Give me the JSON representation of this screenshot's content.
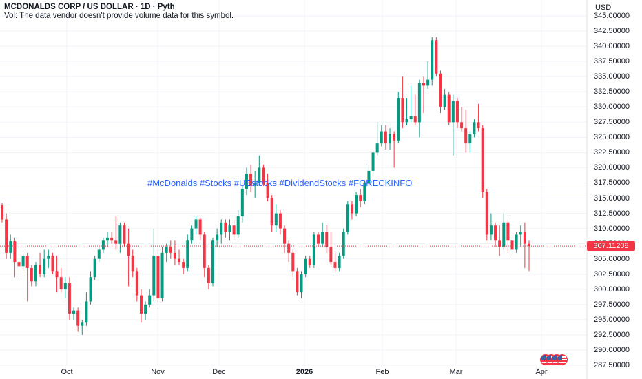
{
  "header": {
    "title": "MCDONALDS CORP / US DOLLAR · 1D · Pyth",
    "volume_note": "Vol: The data vendor doesn't provide volume data for this symbol."
  },
  "axis": {
    "currency": "USD",
    "y_ticks": [
      "345.00000",
      "342.50000",
      "340.00000",
      "337.50000",
      "335.00000",
      "332.50000",
      "330.00000",
      "327.50000",
      "325.00000",
      "322.50000",
      "320.00000",
      "317.50000",
      "315.00000",
      "312.50000",
      "310.00000",
      "307.50000",
      "305.00000",
      "302.50000",
      "300.00000",
      "297.50000",
      "295.00000",
      "292.50000",
      "290.00000",
      "287.50000"
    ],
    "x_ticks": [
      {
        "label": "Oct",
        "bold": false
      },
      {
        "label": "Nov",
        "bold": false
      },
      {
        "label": "Dec",
        "bold": false
      },
      {
        "label": "2026",
        "bold": true
      },
      {
        "label": "Feb",
        "bold": false
      },
      {
        "label": "Mar",
        "bold": false
      },
      {
        "label": "Apr",
        "bold": false
      }
    ]
  },
  "last_price": {
    "label": "307.11208",
    "value": 307.11208
  },
  "annotation": "#McDonalds #Stocks #USstocks #DividendStocks #FORECKINFO",
  "events_icon": "us-flag-events-icon",
  "colors": {
    "up": "#089981",
    "down": "#f23645",
    "annotation": "#2962ff",
    "grid": "#f0f3fa"
  },
  "chart_data": {
    "type": "candlestick",
    "ylim": [
      287.5,
      345
    ],
    "grid": true,
    "candles": [
      {
        "o": 313.8,
        "h": 314.2,
        "l": 311.0,
        "c": 311.5
      },
      {
        "o": 311.5,
        "h": 312.5,
        "l": 305.0,
        "c": 306.0
      },
      {
        "o": 306.0,
        "h": 309.0,
        "l": 305.0,
        "c": 307.9
      },
      {
        "o": 307.9,
        "h": 308.5,
        "l": 302.0,
        "c": 304.5
      },
      {
        "o": 304.5,
        "h": 305.0,
        "l": 302.0,
        "c": 303.8
      },
      {
        "o": 303.8,
        "h": 306.0,
        "l": 303.0,
        "c": 305.5
      },
      {
        "o": 305.5,
        "h": 306.0,
        "l": 298.0,
        "c": 303.5
      },
      {
        "o": 303.5,
        "h": 304.0,
        "l": 300.5,
        "c": 301.3
      },
      {
        "o": 301.3,
        "h": 304.5,
        "l": 300.5,
        "c": 304.0
      },
      {
        "o": 304.0,
        "h": 306.0,
        "l": 302.0,
        "c": 302.5
      },
      {
        "o": 302.5,
        "h": 306.5,
        "l": 302.0,
        "c": 305.0
      },
      {
        "o": 305.0,
        "h": 306.5,
        "l": 303.5,
        "c": 305.5
      },
      {
        "o": 305.5,
        "h": 306.0,
        "l": 302.5,
        "c": 303.0
      },
      {
        "o": 303.0,
        "h": 305.5,
        "l": 299.5,
        "c": 302.0
      },
      {
        "o": 302.0,
        "h": 303.5,
        "l": 299.5,
        "c": 300.0
      },
      {
        "o": 300.0,
        "h": 302.0,
        "l": 298.5,
        "c": 301.0
      },
      {
        "o": 301.0,
        "h": 302.0,
        "l": 295.0,
        "c": 296.0
      },
      {
        "o": 296.0,
        "h": 297.0,
        "l": 295.0,
        "c": 296.5
      },
      {
        "o": 296.5,
        "h": 297.0,
        "l": 293.0,
        "c": 294.0
      },
      {
        "o": 294.0,
        "h": 295.0,
        "l": 292.5,
        "c": 294.5
      },
      {
        "o": 294.5,
        "h": 299.5,
        "l": 294.0,
        "c": 298.0
      },
      {
        "o": 298.0,
        "h": 303.0,
        "l": 297.5,
        "c": 302.0
      },
      {
        "o": 302.0,
        "h": 305.5,
        "l": 301.5,
        "c": 305.0
      },
      {
        "o": 305.0,
        "h": 307.0,
        "l": 304.5,
        "c": 306.5
      },
      {
        "o": 306.5,
        "h": 308.5,
        "l": 306.0,
        "c": 308.0
      },
      {
        "o": 308.0,
        "h": 309.5,
        "l": 307.0,
        "c": 308.5
      },
      {
        "o": 308.5,
        "h": 309.5,
        "l": 307.5,
        "c": 308.0
      },
      {
        "o": 308.0,
        "h": 312.0,
        "l": 306.5,
        "c": 307.5
      },
      {
        "o": 307.5,
        "h": 311.0,
        "l": 306.0,
        "c": 310.5
      },
      {
        "o": 310.5,
        "h": 311.0,
        "l": 307.0,
        "c": 307.5
      },
      {
        "o": 307.5,
        "h": 310.0,
        "l": 300.5,
        "c": 305.5
      },
      {
        "o": 305.5,
        "h": 306.5,
        "l": 302.0,
        "c": 303.0
      },
      {
        "o": 303.0,
        "h": 303.5,
        "l": 298.0,
        "c": 299.0
      },
      {
        "o": 299.0,
        "h": 300.0,
        "l": 294.5,
        "c": 296.0
      },
      {
        "o": 296.0,
        "h": 298.0,
        "l": 295.0,
        "c": 297.5
      },
      {
        "o": 297.5,
        "h": 300.0,
        "l": 297.0,
        "c": 299.0
      },
      {
        "o": 299.0,
        "h": 310.0,
        "l": 298.0,
        "c": 305.5
      },
      {
        "o": 305.5,
        "h": 306.5,
        "l": 297.5,
        "c": 298.5
      },
      {
        "o": 298.5,
        "h": 307.0,
        "l": 298.0,
        "c": 306.0
      },
      {
        "o": 306.0,
        "h": 307.5,
        "l": 304.5,
        "c": 307.0
      },
      {
        "o": 307.0,
        "h": 308.0,
        "l": 305.0,
        "c": 306.0
      },
      {
        "o": 306.0,
        "h": 308.0,
        "l": 304.0,
        "c": 305.0
      },
      {
        "o": 305.0,
        "h": 306.5,
        "l": 304.0,
        "c": 304.5
      },
      {
        "o": 304.5,
        "h": 305.0,
        "l": 302.5,
        "c": 303.5
      },
      {
        "o": 303.5,
        "h": 309.0,
        "l": 303.0,
        "c": 308.0
      },
      {
        "o": 308.0,
        "h": 310.5,
        "l": 307.5,
        "c": 310.0
      },
      {
        "o": 310.0,
        "h": 312.0,
        "l": 309.0,
        "c": 311.5
      },
      {
        "o": 311.5,
        "h": 311.7,
        "l": 308.0,
        "c": 309.0
      },
      {
        "o": 309.0,
        "h": 309.5,
        "l": 302.0,
        "c": 303.5
      },
      {
        "o": 303.5,
        "h": 304.0,
        "l": 300.0,
        "c": 301.0
      },
      {
        "o": 301.0,
        "h": 308.5,
        "l": 300.5,
        "c": 308.0
      },
      {
        "o": 308.0,
        "h": 310.0,
        "l": 307.0,
        "c": 309.0
      },
      {
        "o": 309.0,
        "h": 311.5,
        "l": 307.5,
        "c": 311.0
      },
      {
        "o": 311.0,
        "h": 311.5,
        "l": 308.5,
        "c": 309.5
      },
      {
        "o": 309.5,
        "h": 311.5,
        "l": 308.0,
        "c": 310.5
      },
      {
        "o": 310.5,
        "h": 311.5,
        "l": 308.0,
        "c": 309.0
      },
      {
        "o": 309.0,
        "h": 313.0,
        "l": 308.5,
        "c": 312.0
      },
      {
        "o": 312.0,
        "h": 317.0,
        "l": 311.0,
        "c": 316.5
      },
      {
        "o": 316.5,
        "h": 320.0,
        "l": 315.5,
        "c": 319.0
      },
      {
        "o": 319.0,
        "h": 320.5,
        "l": 316.0,
        "c": 317.0
      },
      {
        "o": 317.0,
        "h": 319.5,
        "l": 315.0,
        "c": 317.5
      },
      {
        "o": 317.5,
        "h": 322.0,
        "l": 317.0,
        "c": 320.0
      },
      {
        "o": 320.0,
        "h": 320.5,
        "l": 317.0,
        "c": 317.5
      },
      {
        "o": 317.5,
        "h": 319.0,
        "l": 314.5,
        "c": 315.0
      },
      {
        "o": 315.0,
        "h": 315.5,
        "l": 309.5,
        "c": 310.5
      },
      {
        "o": 310.5,
        "h": 314.0,
        "l": 309.5,
        "c": 312.5
      },
      {
        "o": 312.5,
        "h": 313.0,
        "l": 309.0,
        "c": 310.0
      },
      {
        "o": 310.0,
        "h": 310.5,
        "l": 306.0,
        "c": 307.5
      },
      {
        "o": 307.5,
        "h": 308.0,
        "l": 304.5,
        "c": 306.0
      },
      {
        "o": 306.0,
        "h": 306.5,
        "l": 302.0,
        "c": 303.0
      },
      {
        "o": 303.0,
        "h": 303.5,
        "l": 299.0,
        "c": 299.5
      },
      {
        "o": 299.5,
        "h": 303.0,
        "l": 298.5,
        "c": 302.5
      },
      {
        "o": 302.5,
        "h": 305.5,
        "l": 302.0,
        "c": 305.0
      },
      {
        "o": 305.0,
        "h": 305.5,
        "l": 303.5,
        "c": 304.0
      },
      {
        "o": 304.0,
        "h": 309.5,
        "l": 303.5,
        "c": 309.0
      },
      {
        "o": 309.0,
        "h": 309.5,
        "l": 307.0,
        "c": 307.5
      },
      {
        "o": 307.5,
        "h": 311.0,
        "l": 307.0,
        "c": 309.5
      },
      {
        "o": 309.5,
        "h": 310.5,
        "l": 306.0,
        "c": 307.0
      },
      {
        "o": 307.0,
        "h": 309.5,
        "l": 304.0,
        "c": 304.5
      },
      {
        "o": 304.5,
        "h": 306.0,
        "l": 303.0,
        "c": 303.5
      },
      {
        "o": 303.5,
        "h": 306.0,
        "l": 303.0,
        "c": 305.5
      },
      {
        "o": 305.5,
        "h": 310.0,
        "l": 305.0,
        "c": 309.5
      },
      {
        "o": 309.5,
        "h": 314.5,
        "l": 309.0,
        "c": 314.0
      },
      {
        "o": 314.0,
        "h": 314.5,
        "l": 311.5,
        "c": 312.5
      },
      {
        "o": 312.5,
        "h": 316.0,
        "l": 312.0,
        "c": 315.5
      },
      {
        "o": 315.5,
        "h": 316.5,
        "l": 313.5,
        "c": 314.5
      },
      {
        "o": 314.5,
        "h": 318.0,
        "l": 314.0,
        "c": 317.5
      },
      {
        "o": 317.5,
        "h": 320.5,
        "l": 317.0,
        "c": 319.5
      },
      {
        "o": 319.5,
        "h": 323.0,
        "l": 319.0,
        "c": 322.5
      },
      {
        "o": 322.5,
        "h": 327.5,
        "l": 322.0,
        "c": 324.0
      },
      {
        "o": 324.0,
        "h": 327.0,
        "l": 323.5,
        "c": 326.0
      },
      {
        "o": 326.0,
        "h": 327.0,
        "l": 323.0,
        "c": 324.0
      },
      {
        "o": 324.0,
        "h": 326.5,
        "l": 323.0,
        "c": 325.5
      },
      {
        "o": 325.5,
        "h": 326.0,
        "l": 320.0,
        "c": 324.5
      },
      {
        "o": 324.5,
        "h": 332.5,
        "l": 324.0,
        "c": 331.5
      },
      {
        "o": 331.5,
        "h": 335.0,
        "l": 326.5,
        "c": 327.5
      },
      {
        "o": 327.5,
        "h": 331.5,
        "l": 327.0,
        "c": 328.0
      },
      {
        "o": 328.0,
        "h": 333.5,
        "l": 327.5,
        "c": 328.5
      },
      {
        "o": 328.5,
        "h": 332.0,
        "l": 327.0,
        "c": 327.5
      },
      {
        "o": 327.5,
        "h": 334.5,
        "l": 325.0,
        "c": 334.0
      },
      {
        "o": 334.0,
        "h": 335.0,
        "l": 329.0,
        "c": 333.5
      },
      {
        "o": 333.5,
        "h": 337.5,
        "l": 333.0,
        "c": 334.5
      },
      {
        "o": 334.5,
        "h": 341.5,
        "l": 333.5,
        "c": 341.0
      },
      {
        "o": 341.0,
        "h": 341.5,
        "l": 335.0,
        "c": 335.5
      },
      {
        "o": 335.5,
        "h": 336.0,
        "l": 329.0,
        "c": 330.0
      },
      {
        "o": 330.0,
        "h": 333.0,
        "l": 329.5,
        "c": 332.0
      },
      {
        "o": 332.0,
        "h": 332.5,
        "l": 327.0,
        "c": 327.5
      },
      {
        "o": 327.5,
        "h": 332.0,
        "l": 322.0,
        "c": 331.0
      },
      {
        "o": 331.0,
        "h": 331.5,
        "l": 326.5,
        "c": 327.5
      },
      {
        "o": 327.5,
        "h": 330.0,
        "l": 326.0,
        "c": 326.5
      },
      {
        "o": 326.5,
        "h": 329.5,
        "l": 322.5,
        "c": 324.0
      },
      {
        "o": 324.0,
        "h": 326.0,
        "l": 322.5,
        "c": 325.5
      },
      {
        "o": 325.5,
        "h": 328.0,
        "l": 325.0,
        "c": 327.5
      },
      {
        "o": 327.5,
        "h": 330.5,
        "l": 326.0,
        "c": 326.5
      },
      {
        "o": 326.5,
        "h": 327.0,
        "l": 315.0,
        "c": 316.0
      },
      {
        "o": 316.0,
        "h": 316.5,
        "l": 308.0,
        "c": 309.0
      },
      {
        "o": 309.0,
        "h": 312.5,
        "l": 308.0,
        "c": 310.5
      },
      {
        "o": 310.5,
        "h": 311.0,
        "l": 307.0,
        "c": 308.0
      },
      {
        "o": 308.0,
        "h": 310.5,
        "l": 305.5,
        "c": 307.0
      },
      {
        "o": 307.0,
        "h": 312.5,
        "l": 306.5,
        "c": 311.0
      },
      {
        "o": 311.0,
        "h": 311.5,
        "l": 306.0,
        "c": 308.0
      },
      {
        "o": 308.0,
        "h": 309.0,
        "l": 305.5,
        "c": 306.5
      },
      {
        "o": 306.5,
        "h": 309.5,
        "l": 306.0,
        "c": 309.0
      },
      {
        "o": 309.0,
        "h": 310.5,
        "l": 307.0,
        "c": 309.5
      },
      {
        "o": 309.5,
        "h": 311.0,
        "l": 303.5,
        "c": 307.5
      },
      {
        "o": 307.5,
        "h": 308.0,
        "l": 303.0,
        "c": 307.11208
      }
    ]
  }
}
